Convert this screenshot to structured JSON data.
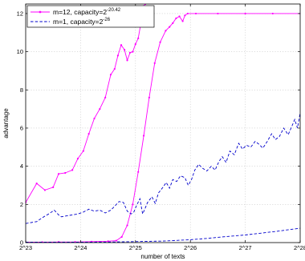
{
  "chart_data": {
    "type": "line",
    "xlabel": "number of texts",
    "ylabel": "advantage",
    "xscale": "log2",
    "xlim": [
      23,
      28
    ],
    "ylim": [
      0,
      12.5
    ],
    "x_ticks": [
      23,
      24,
      25,
      26,
      27,
      28
    ],
    "x_tick_labels": [
      "2^23",
      "2^24",
      "2^25",
      "2^26",
      "2^27",
      "2^28"
    ],
    "y_ticks": [
      0,
      2,
      4,
      6,
      8,
      10,
      12
    ],
    "y_tick_labels": [
      "0",
      "2",
      "4",
      "6",
      "8",
      "10",
      "12"
    ],
    "grid": true,
    "legend_position": "top-left",
    "legend": [
      {
        "label": "m=12, capacity=2",
        "exponent": "-20.42",
        "series_index": 0
      },
      {
        "label": "m=1, capacity=2",
        "exponent": "-26",
        "series_index": 2
      }
    ],
    "colors": {
      "magenta": "#ff00ff",
      "blue": "#0000cc"
    },
    "series": [
      {
        "name": "m=12, capacity=2^-20.42 (upper)",
        "color": "#ff00ff",
        "style": "solid",
        "marker": "dot",
        "points": [
          [
            23.0,
            2.1
          ],
          [
            23.2,
            3.1
          ],
          [
            23.35,
            2.75
          ],
          [
            23.5,
            2.9
          ],
          [
            23.6,
            3.6
          ],
          [
            23.72,
            3.65
          ],
          [
            23.85,
            3.8
          ],
          [
            23.95,
            4.4
          ],
          [
            24.05,
            4.8
          ],
          [
            24.15,
            5.7
          ],
          [
            24.25,
            6.5
          ],
          [
            24.35,
            7.0
          ],
          [
            24.45,
            7.6
          ],
          [
            24.55,
            8.8
          ],
          [
            24.62,
            9.1
          ],
          [
            24.68,
            9.8
          ],
          [
            24.74,
            10.35
          ],
          [
            24.8,
            10.1
          ],
          [
            24.85,
            9.55
          ],
          [
            24.9,
            9.95
          ],
          [
            24.95,
            10.0
          ],
          [
            25.0,
            10.4
          ],
          [
            25.05,
            10.7
          ],
          [
            25.1,
            11.5
          ],
          [
            25.15,
            12.4
          ],
          [
            25.18,
            12.5
          ]
        ]
      },
      {
        "name": "m=12, capacity=2^-20.42 (lower)",
        "color": "#ff00ff",
        "style": "solid",
        "marker": "dot",
        "points": [
          [
            23.0,
            0.02
          ],
          [
            23.3,
            0.02
          ],
          [
            23.6,
            0.03
          ],
          [
            23.9,
            0.03
          ],
          [
            24.2,
            0.05
          ],
          [
            24.5,
            0.07
          ],
          [
            24.65,
            0.1
          ],
          [
            24.75,
            0.3
          ],
          [
            24.85,
            0.9
          ],
          [
            24.95,
            2.0
          ],
          [
            25.05,
            3.7
          ],
          [
            25.15,
            5.6
          ],
          [
            25.25,
            7.6
          ],
          [
            25.35,
            9.4
          ],
          [
            25.45,
            10.5
          ],
          [
            25.55,
            11.1
          ],
          [
            25.62,
            11.3
          ],
          [
            25.68,
            11.5
          ],
          [
            25.74,
            11.75
          ],
          [
            25.8,
            11.85
          ],
          [
            25.86,
            11.6
          ],
          [
            25.9,
            11.9
          ],
          [
            25.95,
            12.0
          ],
          [
            26.1,
            12.0
          ],
          [
            26.5,
            12.0
          ],
          [
            27.0,
            12.0
          ],
          [
            27.5,
            12.0
          ],
          [
            28.0,
            12.0
          ]
        ]
      },
      {
        "name": "m=1, capacity=2^-26 (upper)",
        "color": "#0000cc",
        "style": "dashed",
        "marker": "none",
        "points": [
          [
            23.0,
            1.0
          ],
          [
            23.1,
            1.05
          ],
          [
            23.2,
            1.1
          ],
          [
            23.3,
            1.3
          ],
          [
            23.42,
            1.5
          ],
          [
            23.52,
            1.7
          ],
          [
            23.6,
            1.45
          ],
          [
            23.65,
            1.35
          ],
          [
            23.75,
            1.4
          ],
          [
            23.85,
            1.45
          ],
          [
            23.95,
            1.5
          ],
          [
            24.05,
            1.6
          ],
          [
            24.15,
            1.75
          ],
          [
            24.25,
            1.65
          ],
          [
            24.35,
            1.7
          ],
          [
            24.45,
            1.55
          ],
          [
            24.55,
            1.7
          ],
          [
            24.62,
            1.9
          ],
          [
            24.7,
            2.15
          ],
          [
            24.78,
            2.1
          ],
          [
            24.85,
            1.65
          ],
          [
            24.92,
            1.5
          ],
          [
            24.97,
            1.6
          ],
          [
            25.02,
            1.95
          ],
          [
            25.08,
            2.3
          ],
          [
            25.13,
            1.5
          ],
          [
            25.17,
            1.75
          ],
          [
            25.22,
            2.1
          ],
          [
            25.3,
            2.4
          ],
          [
            25.36,
            2.05
          ],
          [
            25.42,
            2.6
          ],
          [
            25.5,
            2.9
          ],
          [
            25.56,
            3.15
          ],
          [
            25.62,
            2.85
          ],
          [
            25.68,
            3.3
          ],
          [
            25.75,
            3.2
          ],
          [
            25.82,
            3.5
          ],
          [
            25.9,
            3.4
          ],
          [
            25.96,
            3.0
          ],
          [
            26.02,
            3.3
          ],
          [
            26.08,
            3.8
          ],
          [
            26.15,
            4.1
          ],
          [
            26.22,
            3.9
          ],
          [
            26.3,
            3.75
          ],
          [
            26.38,
            4.0
          ],
          [
            26.45,
            3.8
          ],
          [
            26.52,
            4.25
          ],
          [
            26.58,
            4.5
          ],
          [
            26.65,
            4.2
          ],
          [
            26.72,
            4.8
          ],
          [
            26.8,
            4.6
          ],
          [
            26.88,
            5.2
          ],
          [
            26.95,
            4.9
          ],
          [
            27.02,
            5.1
          ],
          [
            27.1,
            5.0
          ],
          [
            27.18,
            5.3
          ],
          [
            27.25,
            5.15
          ],
          [
            27.32,
            4.95
          ],
          [
            27.4,
            5.3
          ],
          [
            27.48,
            5.7
          ],
          [
            27.55,
            5.4
          ],
          [
            27.62,
            5.55
          ],
          [
            27.7,
            6.0
          ],
          [
            27.78,
            5.65
          ],
          [
            27.85,
            6.1
          ],
          [
            27.9,
            6.45
          ],
          [
            27.95,
            6.0
          ],
          [
            28.0,
            6.8
          ]
        ]
      },
      {
        "name": "m=1, capacity=2^-26 (lower)",
        "color": "#0000cc",
        "style": "dashed",
        "marker": "none",
        "points": [
          [
            23.0,
            0.02
          ],
          [
            23.5,
            0.02
          ],
          [
            24.0,
            0.02
          ],
          [
            24.5,
            0.03
          ],
          [
            25.0,
            0.05
          ],
          [
            25.5,
            0.08
          ],
          [
            25.8,
            0.12
          ],
          [
            26.0,
            0.15
          ],
          [
            26.3,
            0.22
          ],
          [
            26.6,
            0.3
          ],
          [
            27.0,
            0.4
          ],
          [
            27.3,
            0.5
          ],
          [
            27.6,
            0.6
          ],
          [
            27.8,
            0.68
          ],
          [
            28.0,
            0.75
          ]
        ]
      }
    ]
  }
}
